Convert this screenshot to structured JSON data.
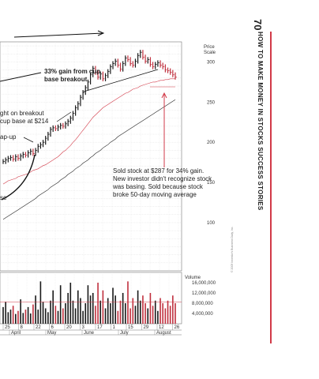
{
  "page": {
    "number": "70",
    "running_title": "HOW TO MAKE MONEY IN STOCKS SUCCESS STORIES"
  },
  "annotations": {
    "gain": "33% gain from cup base breakout",
    "breakout_1": "ght on breakout",
    "breakout_2": "cup base at $214",
    "gap_up": "ap-up",
    "base": "se",
    "sold_1": "Sold stock at $287 for 34% gain.",
    "sold_2": "New investor didn't recognize stock",
    "sold_3": "was basing. Sold because stock",
    "sold_4": "broke 50-day moving average"
  },
  "credit": "© 2009 Investor's Business Daily, Inc.",
  "chart_data": {
    "type": "line",
    "price_axis": {
      "title": [
        "Price",
        "Scale"
      ],
      "ticks": [
        100,
        150,
        200,
        250,
        300
      ],
      "ylim": [
        40,
        325
      ]
    },
    "volume_axis": {
      "title": "Volume",
      "ticks": [
        "16,000,000",
        "12,000,000",
        "8,000,000",
        "4,000,000"
      ],
      "tick_values": [
        16000000,
        12000000,
        8000000,
        4000000
      ]
    },
    "x_ticks": [
      "25",
      "8",
      "22",
      "6",
      "20",
      "3",
      "17",
      "1",
      "15",
      "29",
      "12",
      "26"
    ],
    "months": [
      "April",
      "May",
      "June",
      "July",
      "August"
    ],
    "price": [
      176,
      178,
      180,
      181,
      179,
      182,
      180,
      183,
      185,
      184,
      187,
      189,
      186,
      190,
      195,
      197,
      200,
      205,
      210,
      216,
      218,
      217,
      219,
      221,
      220,
      223,
      226,
      230,
      236,
      243,
      248,
      256,
      262,
      268,
      275,
      284,
      292,
      287,
      281,
      285,
      279,
      283,
      288,
      294,
      298,
      301,
      296,
      291,
      298,
      305,
      303,
      298,
      296,
      301,
      308,
      312,
      306,
      301,
      303,
      297,
      294,
      297,
      299,
      296,
      294,
      290,
      289,
      287,
      284,
      281
    ],
    "ma50": [
      148,
      150,
      152,
      153,
      154,
      155,
      157,
      158,
      159,
      160,
      161,
      163,
      165,
      166,
      167,
      169,
      171,
      172,
      174,
      176,
      178,
      180,
      182,
      185,
      188,
      190,
      193,
      196,
      200,
      203,
      207,
      211,
      215,
      219,
      223,
      227,
      231,
      234,
      237,
      240,
      243,
      245,
      247,
      249,
      251,
      253,
      255,
      257,
      259,
      261,
      262,
      264,
      266,
      267,
      268,
      270,
      271,
      272,
      273,
      274,
      275,
      275,
      276,
      277,
      277,
      278,
      278,
      279,
      279,
      279
    ],
    "ma200": [
      104,
      106,
      108,
      110,
      112,
      114,
      116,
      118,
      120,
      122,
      124,
      126,
      128,
      130,
      133,
      135,
      137,
      139,
      141,
      144,
      146,
      148,
      150,
      153,
      155,
      157,
      160,
      162,
      164,
      167,
      169,
      171,
      174,
      176,
      178,
      181,
      183,
      186,
      188,
      190,
      193,
      195,
      197,
      200,
      202,
      204,
      207,
      209,
      211,
      213,
      215,
      217,
      219,
      221,
      223,
      225,
      227,
      229,
      231,
      233,
      235,
      237,
      239,
      241,
      243,
      245,
      247,
      249,
      251,
      253
    ],
    "volume": [
      6.5,
      8.5,
      4.5,
      5.5,
      7,
      3.8,
      5,
      9.5,
      4.2,
      5.5,
      6.5,
      4,
      7.5,
      11,
      5.5,
      16.5,
      8.5,
      6,
      4.5,
      9,
      13,
      7,
      5,
      15,
      6,
      8,
      12,
      16,
      9,
      6,
      13,
      10,
      5,
      8,
      15,
      11,
      12,
      7,
      16,
      9,
      13,
      6,
      10,
      8,
      14,
      11,
      5,
      9,
      12,
      8,
      16.5,
      6,
      10,
      7,
      13,
      9,
      11,
      8,
      6,
      12,
      7,
      9,
      5,
      10,
      8,
      6,
      9,
      7,
      11,
      8
    ],
    "volume_avg_level": 8.5
  }
}
